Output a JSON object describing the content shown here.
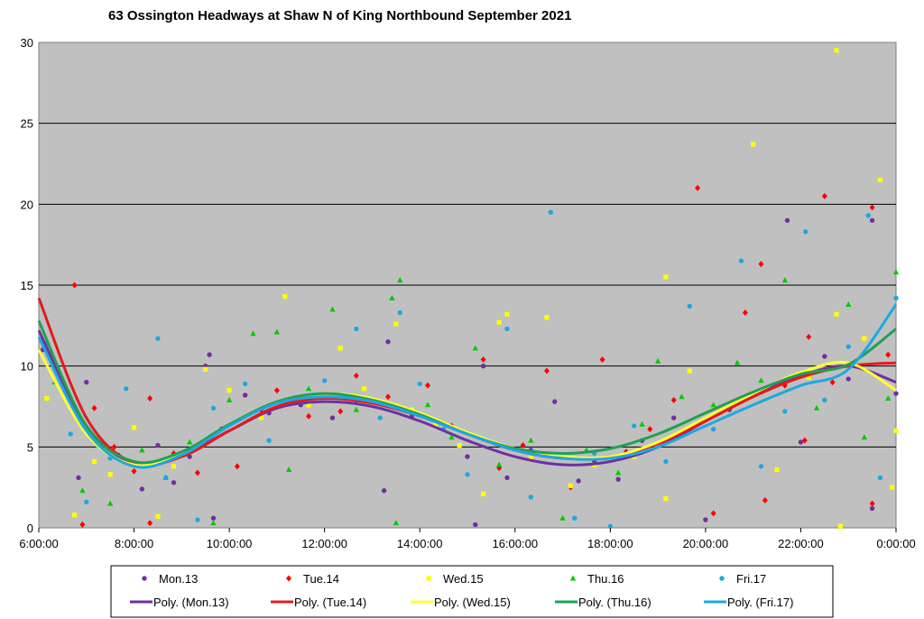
{
  "chart_data": {
    "type": "scatter",
    "title": "63 Ossington Headways at Shaw N of King Northbound September 2021",
    "xlabel": "",
    "ylabel": "",
    "xlim": [
      "6:00:00",
      "0:00:00"
    ],
    "ylim": [
      0,
      30
    ],
    "x_ticks": [
      "6:00:00",
      "8:00:00",
      "10:00:00",
      "12:00:00",
      "14:00:00",
      "16:00:00",
      "18:00:00",
      "20:00:00",
      "22:00:00",
      "0:00:00"
    ],
    "y_ticks": [
      0,
      5,
      10,
      15,
      20,
      25,
      30
    ],
    "grid": "horizontal",
    "plot_background": "#C0C0C0",
    "legend_position": "bottom",
    "series": [
      {
        "name": "Mon.13",
        "marker": "circle",
        "color": "#7030A0",
        "points": [
          [
            "6:05",
            11
          ],
          [
            "6:50",
            3.1
          ],
          [
            "7:00",
            9
          ],
          [
            "7:20",
            5.2
          ],
          [
            "7:40",
            4.5
          ],
          [
            "8:10",
            2.4
          ],
          [
            "8:30",
            5.1
          ],
          [
            "8:50",
            2.8
          ],
          [
            "9:10",
            4.4
          ],
          [
            "9:30",
            10
          ],
          [
            "9:35",
            10.7
          ],
          [
            "9:40",
            0.6
          ],
          [
            "10:20",
            8.2
          ],
          [
            "10:50",
            7.1
          ],
          [
            "11:30",
            7.6
          ],
          [
            "12:10",
            6.8
          ],
          [
            "12:40",
            7.9
          ],
          [
            "13:15",
            2.3
          ],
          [
            "13:20",
            11.5
          ],
          [
            "13:50",
            6.9
          ],
          [
            "14:30",
            6.1
          ],
          [
            "15:00",
            4.4
          ],
          [
            "15:10",
            0.2
          ],
          [
            "15:20",
            10
          ],
          [
            "15:50",
            3.1
          ],
          [
            "16:20",
            4.8
          ],
          [
            "16:50",
            7.8
          ],
          [
            "17:20",
            2.9
          ],
          [
            "17:40",
            4.1
          ],
          [
            "18:10",
            3
          ],
          [
            "18:40",
            5.4
          ],
          [
            "19:20",
            6.8
          ],
          [
            "20:00",
            0.5
          ],
          [
            "20:30",
            7.3
          ],
          [
            "21:10",
            8.4
          ],
          [
            "21:43",
            19
          ],
          [
            "22:00",
            5.3
          ],
          [
            "22:30",
            10.6
          ],
          [
            "23:00",
            9.2
          ],
          [
            "23:30",
            19
          ],
          [
            "23:30",
            1.2
          ],
          [
            "0:00",
            8.3
          ]
        ]
      },
      {
        "name": "Tue.14",
        "marker": "diamond",
        "color": "#FF0000",
        "points": [
          [
            "6:20",
            10
          ],
          [
            "6:45",
            15
          ],
          [
            "6:55",
            0.2
          ],
          [
            "7:10",
            7.4
          ],
          [
            "7:35",
            5
          ],
          [
            "8:00",
            3.5
          ],
          [
            "8:20",
            0.3
          ],
          [
            "8:20",
            8
          ],
          [
            "8:50",
            4.6
          ],
          [
            "9:20",
            3.4
          ],
          [
            "9:50",
            6.1
          ],
          [
            "10:10",
            3.8
          ],
          [
            "10:40",
            7.3
          ],
          [
            "11:00",
            8.5
          ],
          [
            "11:40",
            6.9
          ],
          [
            "12:20",
            7.2
          ],
          [
            "12:40",
            9.4
          ],
          [
            "13:20",
            8.1
          ],
          [
            "14:10",
            8.8
          ],
          [
            "14:40",
            6.3
          ],
          [
            "15:20",
            10.4
          ],
          [
            "15:40",
            3.7
          ],
          [
            "16:10",
            5.1
          ],
          [
            "16:40",
            9.7
          ],
          [
            "17:10",
            2.5
          ],
          [
            "17:50",
            10.4
          ],
          [
            "18:20",
            4.7
          ],
          [
            "18:50",
            6.1
          ],
          [
            "19:20",
            7.9
          ],
          [
            "19:50",
            21
          ],
          [
            "20:10",
            0.9
          ],
          [
            "20:50",
            13.3
          ],
          [
            "21:10",
            16.3
          ],
          [
            "21:15",
            1.7
          ],
          [
            "21:40",
            8.8
          ],
          [
            "22:05",
            5.4
          ],
          [
            "22:10",
            11.8
          ],
          [
            "22:30",
            20.5
          ],
          [
            "22:40",
            9
          ],
          [
            "23:30",
            19.8
          ],
          [
            "23:30",
            1.5
          ],
          [
            "23:50",
            10.7
          ]
        ]
      },
      {
        "name": "Wed.15",
        "marker": "square",
        "color": "#FFFF00",
        "points": [
          [
            "6:10",
            8
          ],
          [
            "6:45",
            0.8
          ],
          [
            "7:10",
            4.1
          ],
          [
            "7:30",
            3.3
          ],
          [
            "8:00",
            6.2
          ],
          [
            "8:30",
            0.7
          ],
          [
            "8:50",
            3.8
          ],
          [
            "9:30",
            9.8
          ],
          [
            "10:00",
            8.5
          ],
          [
            "10:40",
            6.8
          ],
          [
            "11:10",
            14.3
          ],
          [
            "11:40",
            7.6
          ],
          [
            "12:20",
            11.1
          ],
          [
            "12:50",
            8.6
          ],
          [
            "13:30",
            12.6
          ],
          [
            "13:50",
            7.3
          ],
          [
            "14:20",
            6.4
          ],
          [
            "14:50",
            5.1
          ],
          [
            "15:20",
            2.1
          ],
          [
            "15:40",
            12.7
          ],
          [
            "15:50",
            13.2
          ],
          [
            "16:20",
            4.3
          ],
          [
            "16:40",
            13
          ],
          [
            "17:10",
            2.6
          ],
          [
            "17:40",
            3.9
          ],
          [
            "18:30",
            4.4
          ],
          [
            "19:10",
            15.5
          ],
          [
            "19:10",
            1.8
          ],
          [
            "19:40",
            9.7
          ],
          [
            "20:20",
            7.2
          ],
          [
            "21:00",
            23.7
          ],
          [
            "21:30",
            3.6
          ],
          [
            "22:10",
            9.3
          ],
          [
            "22:45",
            29.5
          ],
          [
            "22:45",
            13.2
          ],
          [
            "22:50",
            0.1
          ],
          [
            "23:20",
            11.7
          ],
          [
            "23:40",
            21.5
          ],
          [
            "23:55",
            2.5
          ],
          [
            "0:00",
            6
          ]
        ]
      },
      {
        "name": "Thu.16",
        "marker": "triangle",
        "color": "#00CC00",
        "points": [
          [
            "6:20",
            9
          ],
          [
            "6:55",
            2.3
          ],
          [
            "7:15",
            5.1
          ],
          [
            "7:30",
            1.5
          ],
          [
            "8:10",
            4.8
          ],
          [
            "8:40",
            3.1
          ],
          [
            "9:10",
            5.3
          ],
          [
            "9:40",
            0.3
          ],
          [
            "10:00",
            7.9
          ],
          [
            "10:30",
            12
          ],
          [
            "11:00",
            12.1
          ],
          [
            "11:15",
            3.6
          ],
          [
            "11:40",
            8.6
          ],
          [
            "12:10",
            13.5
          ],
          [
            "12:40",
            7.3
          ],
          [
            "13:25",
            14.2
          ],
          [
            "13:30",
            0.3
          ],
          [
            "13:35",
            15.3
          ],
          [
            "14:10",
            7.6
          ],
          [
            "14:40",
            5.6
          ],
          [
            "15:10",
            11.1
          ],
          [
            "15:40",
            3.9
          ],
          [
            "16:20",
            5.4
          ],
          [
            "17:00",
            0.6
          ],
          [
            "17:30",
            4.8
          ],
          [
            "18:10",
            3.4
          ],
          [
            "18:40",
            6.4
          ],
          [
            "19:00",
            10.3
          ],
          [
            "19:30",
            8.1
          ],
          [
            "20:10",
            7.6
          ],
          [
            "20:40",
            10.2
          ],
          [
            "21:10",
            9.1
          ],
          [
            "21:40",
            15.3
          ],
          [
            "22:20",
            7.4
          ],
          [
            "23:00",
            13.8
          ],
          [
            "23:20",
            5.6
          ],
          [
            "23:50",
            8
          ],
          [
            "0:00",
            15.8
          ]
        ]
      },
      {
        "name": "Fri.17",
        "marker": "circle",
        "color": "#1CA8E0",
        "points": [
          [
            "6:10",
            11.4
          ],
          [
            "6:40",
            5.8
          ],
          [
            "7:00",
            1.6
          ],
          [
            "7:30",
            4.3
          ],
          [
            "7:50",
            8.6
          ],
          [
            "8:30",
            11.7
          ],
          [
            "8:40",
            3.1
          ],
          [
            "9:20",
            0.5
          ],
          [
            "9:40",
            7.4
          ],
          [
            "10:20",
            8.9
          ],
          [
            "10:50",
            5.4
          ],
          [
            "11:20",
            7.9
          ],
          [
            "12:00",
            9.1
          ],
          [
            "12:40",
            12.3
          ],
          [
            "13:10",
            6.8
          ],
          [
            "13:35",
            13.3
          ],
          [
            "14:00",
            8.9
          ],
          [
            "14:30",
            6.1
          ],
          [
            "15:00",
            3.3
          ],
          [
            "15:50",
            12.3
          ],
          [
            "16:20",
            1.9
          ],
          [
            "16:45",
            19.5
          ],
          [
            "17:15",
            0.6
          ],
          [
            "17:40",
            4.6
          ],
          [
            "18:00",
            0.1
          ],
          [
            "18:30",
            6.3
          ],
          [
            "19:10",
            4.1
          ],
          [
            "19:40",
            13.7
          ],
          [
            "20:10",
            6.1
          ],
          [
            "20:45",
            16.5
          ],
          [
            "21:10",
            3.8
          ],
          [
            "21:40",
            7.2
          ],
          [
            "22:06",
            18.3
          ],
          [
            "22:30",
            7.9
          ],
          [
            "23:00",
            11.2
          ],
          [
            "23:25",
            19.3
          ],
          [
            "23:40",
            3.1
          ],
          [
            "0:00",
            14.2
          ]
        ]
      }
    ],
    "trendlines": {
      "type": "polynomial",
      "x_hours": [
        "6:00",
        "7:00",
        "8:00",
        "9:00",
        "10:00",
        "11:00",
        "12:00",
        "13:00",
        "14:00",
        "15:00",
        "16:00",
        "17:00",
        "18:00",
        "19:00",
        "20:00",
        "21:00",
        "22:00",
        "23:00",
        "0:00"
      ],
      "series": [
        {
          "name": "Poly. (Mon.13)",
          "color": "#7030A0",
          "values": [
            12.2,
            6.3,
            4.0,
            4.5,
            6.0,
            7.4,
            7.8,
            7.5,
            6.6,
            5.4,
            4.4,
            3.9,
            4.1,
            5.0,
            6.6,
            8.2,
            9.4,
            10.0,
            9.0
          ]
        },
        {
          "name": "Poly. (Tue.14)",
          "color": "#E41A1C",
          "values": [
            14.2,
            6.8,
            4.0,
            4.4,
            6.0,
            7.5,
            8.0,
            7.7,
            6.9,
            5.8,
            4.8,
            4.3,
            4.4,
            5.2,
            6.6,
            8.1,
            9.3,
            10.0,
            10.2
          ]
        },
        {
          "name": "Poly. (Wed.15)",
          "color": "#FFFF33",
          "values": [
            11.0,
            5.8,
            3.9,
            4.6,
            6.4,
            7.8,
            8.3,
            8.0,
            7.1,
            5.9,
            4.9,
            4.4,
            4.4,
            5.3,
            6.8,
            8.3,
            9.6,
            10.2,
            8.5
          ]
        },
        {
          "name": "Poly. (Thu.16)",
          "color": "#1FA055",
          "values": [
            12.8,
            6.3,
            4.1,
            4.7,
            6.4,
            7.8,
            8.3,
            7.9,
            7.0,
            5.8,
            4.9,
            4.6,
            4.9,
            5.8,
            7.1,
            8.4,
            9.5,
            10.1,
            12.3
          ]
        },
        {
          "name": "Poly. (Fri.17)",
          "color": "#1CA8E0",
          "values": [
            11.8,
            6.0,
            3.8,
            4.5,
            6.3,
            7.7,
            8.1,
            7.8,
            6.9,
            5.8,
            4.8,
            4.3,
            4.3,
            5.0,
            6.3,
            7.6,
            8.8,
            9.8,
            13.8
          ]
        }
      ]
    }
  }
}
